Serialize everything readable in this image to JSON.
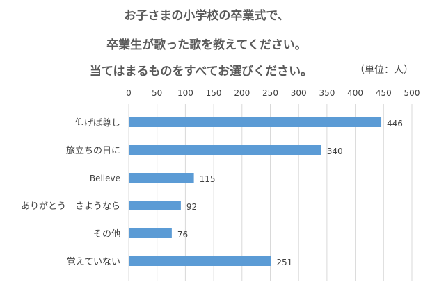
{
  "title": {
    "line1": "お子さまの小学校の卒業式で、",
    "line2": "卒業生が歌った歌を教えてください。",
    "line3": "当てはまるものをすべてお選びください。",
    "unit": "（単位：人）"
  },
  "colors": {
    "bar": "#5B9BD5",
    "grid": "#D9D9D9",
    "text": "#404040",
    "title": "#595959"
  },
  "chart_data": {
    "type": "bar",
    "orientation": "horizontal",
    "categories": [
      "仰げば尊し",
      "旅立ちの日に",
      "Believe",
      "ありがとう　さようなら",
      "その他",
      "覚えていない"
    ],
    "values": [
      446,
      340,
      115,
      92,
      76,
      251
    ],
    "xlim": [
      0,
      500
    ],
    "xticks": [
      0,
      50,
      100,
      150,
      200,
      250,
      300,
      350,
      400,
      450,
      500
    ],
    "x_axis_position": "top",
    "grid": true,
    "data_labels": true,
    "legend": "none"
  }
}
